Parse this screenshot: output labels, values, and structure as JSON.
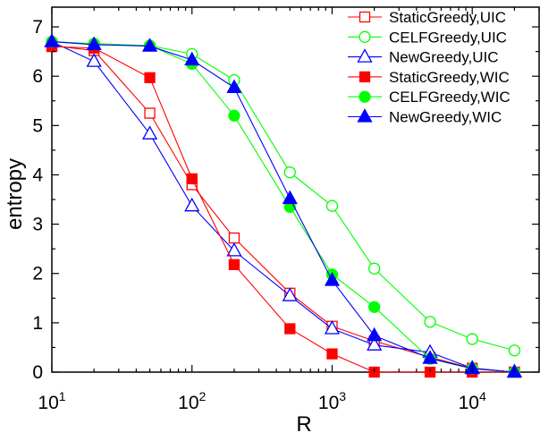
{
  "chart_data": {
    "type": "line",
    "title": "",
    "xlabel": "R",
    "ylabel": "entropy",
    "xscale": "log",
    "xlim": [
      10,
      30000
    ],
    "ylim": [
      0,
      7.4
    ],
    "x_ticks": [
      {
        "value": 10,
        "base": "10",
        "exp": "1"
      },
      {
        "value": 100,
        "base": "10",
        "exp": "2"
      },
      {
        "value": 1000,
        "base": "10",
        "exp": "3"
      },
      {
        "value": 10000,
        "base": "10",
        "exp": "4"
      }
    ],
    "y_ticks": [
      "0",
      "1",
      "2",
      "3",
      "4",
      "5",
      "6",
      "7"
    ],
    "grid": false,
    "legend_position": "top-right",
    "series": [
      {
        "name": "StaticGreedy,UIC",
        "color": "#ff0000",
        "marker": "square",
        "filled": false,
        "x": [
          10,
          20,
          50,
          100,
          200,
          500,
          1000,
          2000,
          5000,
          10000,
          20000
        ],
        "y": [
          6.62,
          6.52,
          5.25,
          3.8,
          2.72,
          1.6,
          0.93,
          0.63,
          0.3,
          0.08,
          0.0
        ]
      },
      {
        "name": "CELFGreedy,UIC",
        "color": "#00ff00",
        "marker": "circle",
        "filled": false,
        "x": [
          10,
          20,
          50,
          100,
          200,
          500,
          1000,
          2000,
          5000,
          10000,
          20000
        ],
        "y": [
          6.7,
          6.66,
          6.62,
          6.45,
          5.92,
          4.05,
          3.37,
          2.1,
          1.02,
          0.67,
          0.44
        ]
      },
      {
        "name": "NewGreedy,UIC",
        "color": "#0000ff",
        "marker": "triangle",
        "filled": false,
        "x": [
          10,
          20,
          50,
          100,
          200,
          500,
          1000,
          2000,
          5000,
          10000,
          20000
        ],
        "y": [
          6.7,
          6.3,
          4.83,
          3.37,
          2.46,
          1.55,
          0.88,
          0.55,
          0.4,
          0.08,
          0.0
        ]
      },
      {
        "name": "StaticGreedy,WIC",
        "color": "#ff0000",
        "marker": "square",
        "filled": true,
        "x": [
          10,
          20,
          50,
          100,
          200,
          500,
          1000,
          2000,
          5000,
          10000,
          20000
        ],
        "y": [
          6.6,
          6.57,
          5.97,
          3.92,
          2.18,
          0.88,
          0.37,
          0.0,
          0.0,
          0.0,
          0.0
        ]
      },
      {
        "name": "CELFGreedy,WIC",
        "color": "#00ff00",
        "marker": "circle",
        "filled": true,
        "x": [
          10,
          20,
          50,
          100,
          200,
          500,
          1000,
          2000,
          5000,
          10000,
          20000
        ],
        "y": [
          6.7,
          6.65,
          6.62,
          6.25,
          5.2,
          3.35,
          1.98,
          1.32,
          0.27,
          0.07,
          0.0
        ]
      },
      {
        "name": "NewGreedy,WIC",
        "color": "#0000ff",
        "marker": "triangle",
        "filled": true,
        "x": [
          10,
          20,
          50,
          100,
          200,
          500,
          1000,
          2000,
          5000,
          10000,
          20000
        ],
        "y": [
          6.7,
          6.64,
          6.61,
          6.33,
          5.77,
          3.52,
          1.86,
          0.74,
          0.28,
          0.07,
          0.0
        ]
      }
    ]
  }
}
